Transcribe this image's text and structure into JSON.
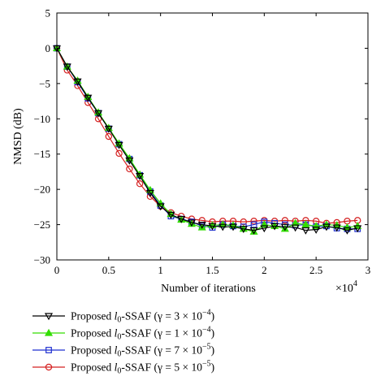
{
  "chart_data": {
    "type": "line",
    "xlabel": "Number of iterations",
    "ylabel": "NMSD (dB)",
    "x_multiplier_base": "×10",
    "x_multiplier_exp": "4",
    "xlim": [
      0,
      3
    ],
    "ylim": [
      -30,
      5
    ],
    "xticks": [
      "0",
      "0.5",
      "1",
      "1.5",
      "2",
      "2.5",
      "3"
    ],
    "yticks": [
      "5",
      "0",
      "−5",
      "−10",
      "−15",
      "−20",
      "−25",
      "−30"
    ],
    "grid": false,
    "legend_position": "below",
    "x": [
      0,
      0.1,
      0.2,
      0.3,
      0.4,
      0.5,
      0.6,
      0.7,
      0.8,
      0.9,
      1.0,
      1.1,
      1.2,
      1.3,
      1.4,
      1.5,
      1.6,
      1.7,
      1.8,
      1.9,
      2.0,
      2.1,
      2.2,
      2.3,
      2.4,
      2.5,
      2.6,
      2.7,
      2.8,
      2.9
    ],
    "series": [
      {
        "legend_pre": "Proposed ",
        "legend_sym": "l",
        "legend_sub": "0",
        "legend_post": "-SSAF (γ = 3 × 10",
        "legend_exp": "−4",
        "legend_close": ")",
        "color": "#000000",
        "marker": "triangle-down",
        "values": [
          0,
          -2.6,
          -4.7,
          -7.0,
          -9.2,
          -11.4,
          -13.7,
          -15.9,
          -18.1,
          -20.5,
          -22.4,
          -23.6,
          -24.2,
          -24.7,
          -25.0,
          -25.2,
          -25.3,
          -25.3,
          -25.6,
          -25.8,
          -25.5,
          -25.2,
          -25.3,
          -25.4,
          -25.8,
          -25.7,
          -25.3,
          -25.4,
          -25.8,
          -25.5
        ]
      },
      {
        "legend_pre": "Proposed ",
        "legend_sym": "l",
        "legend_sub": "0",
        "legend_post": "-SSAF (γ = 1 × 10",
        "legend_exp": "−4",
        "legend_close": ")",
        "color": "#33dd00",
        "marker": "triangle-up",
        "values": [
          0,
          -2.6,
          -4.6,
          -6.9,
          -9.1,
          -11.3,
          -13.5,
          -15.6,
          -17.9,
          -20.1,
          -22.0,
          -23.5,
          -24.3,
          -24.9,
          -25.4,
          -25.1,
          -25.0,
          -25.1,
          -25.6,
          -26.0,
          -25.0,
          -25.2,
          -25.6,
          -24.8,
          -25.0,
          -25.2,
          -25.0,
          -25.1,
          -25.4,
          -25.2
        ]
      },
      {
        "legend_pre": "Proposed ",
        "legend_sym": "l",
        "legend_sub": "0",
        "legend_post": "-SSAF (γ = 7 × 10",
        "legend_exp": "−5",
        "legend_close": ")",
        "color": "#1f2fd0",
        "marker": "square",
        "values": [
          0,
          -2.6,
          -4.8,
          -7.1,
          -9.2,
          -11.4,
          -13.6,
          -15.7,
          -18.0,
          -20.3,
          -22.3,
          -23.8,
          -24.2,
          -24.6,
          -25.2,
          -25.4,
          -25.0,
          -25.2,
          -25.3,
          -25.0,
          -24.6,
          -24.8,
          -25.0,
          -25.1,
          -25.0,
          -25.3,
          -25.2,
          -25.5,
          -25.6,
          -25.6
        ]
      },
      {
        "legend_pre": "Proposed ",
        "legend_sym": "l",
        "legend_sub": "0",
        "legend_post": "-SSAF (γ = 5 × 10",
        "legend_exp": "−5",
        "legend_close": ")",
        "color": "#d42020",
        "marker": "circle",
        "values": [
          0,
          -3.1,
          -5.3,
          -7.7,
          -10.0,
          -12.5,
          -14.9,
          -17.1,
          -19.2,
          -21.0,
          -22.4,
          -23.3,
          -23.8,
          -24.2,
          -24.4,
          -24.6,
          -24.5,
          -24.5,
          -24.6,
          -24.5,
          -24.4,
          -24.5,
          -24.4,
          -24.5,
          -24.4,
          -24.5,
          -24.8,
          -24.7,
          -24.5,
          -24.4
        ]
      }
    ]
  }
}
